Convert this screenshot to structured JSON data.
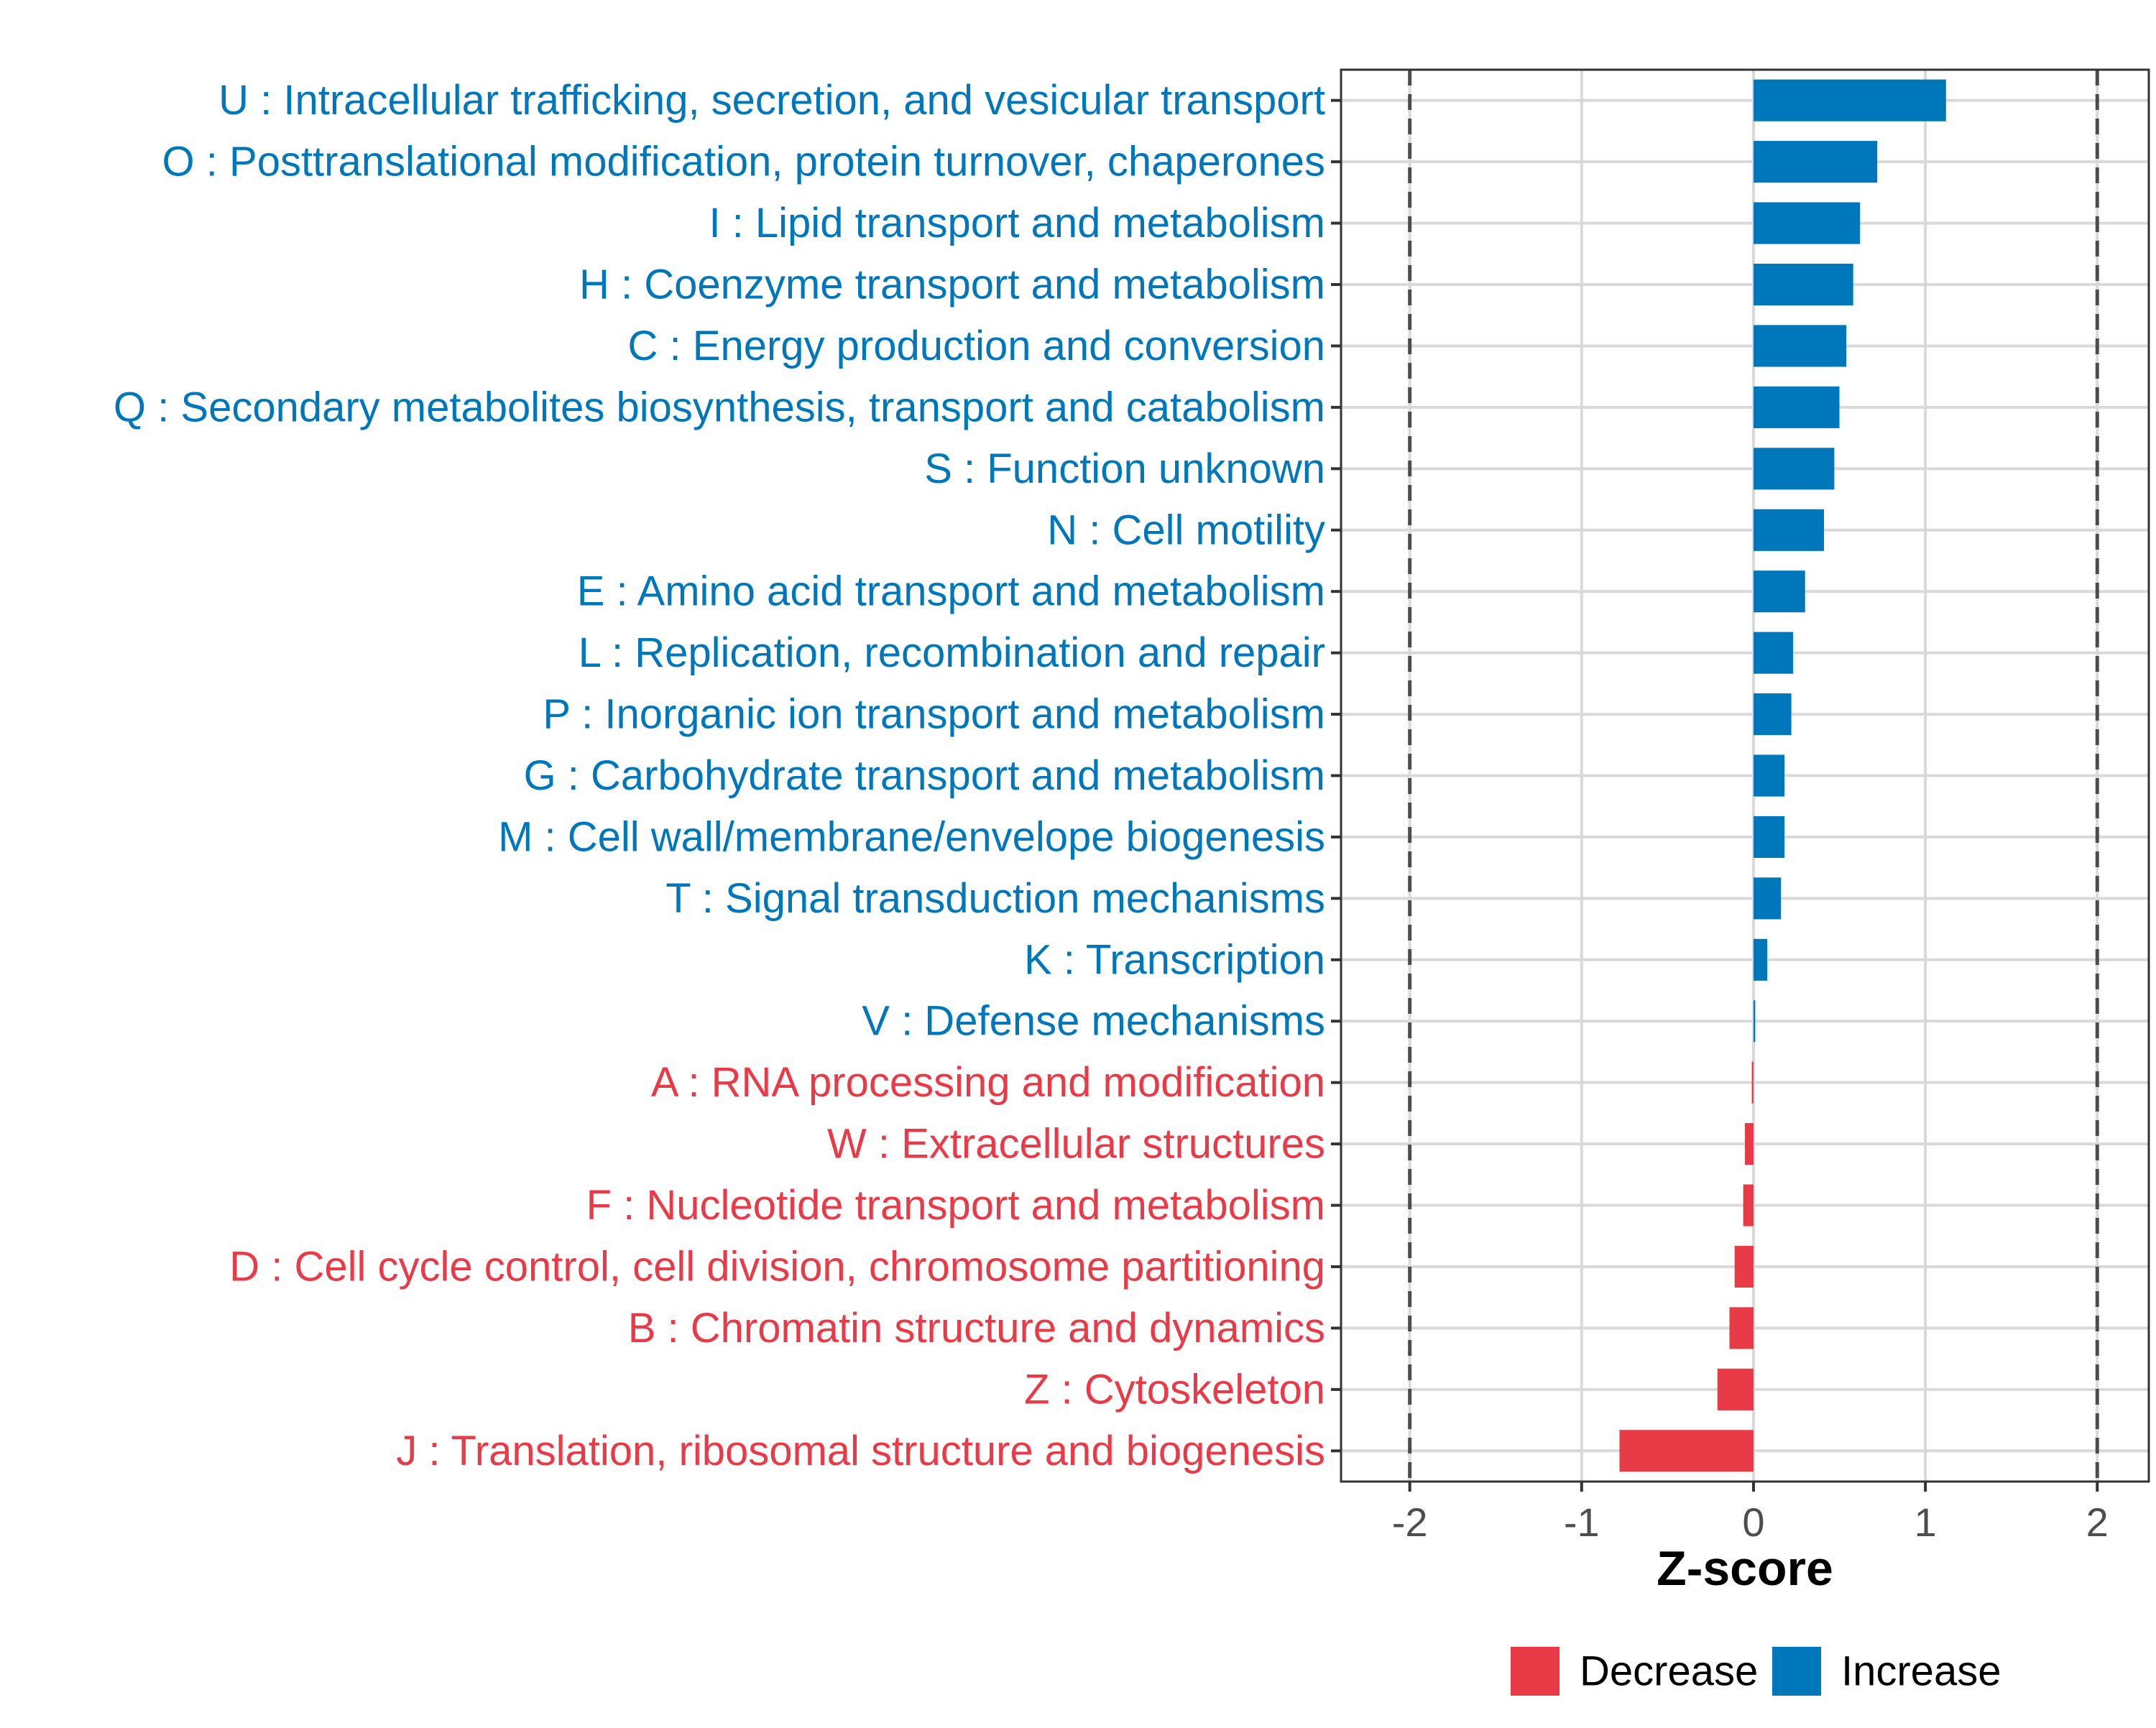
{
  "colors": {
    "increase": "#0076BB",
    "decrease": "#E83A47",
    "grid": "#D9D9D9",
    "axis_text": "#4D4D4D",
    "border": "#333333",
    "threshold": "#4D4D4D"
  },
  "chart_data": {
    "type": "bar",
    "orientation": "horizontal",
    "xlabel": "Z-score",
    "ylabel": "",
    "xlim": [
      -2.4,
      2.3
    ],
    "x_ticks": [
      -2,
      -1,
      0,
      1,
      2
    ],
    "x_tick_labels": [
      "-2",
      "-1",
      "0",
      "1",
      "2"
    ],
    "threshold_lines": [
      -2,
      2
    ],
    "grid": true,
    "legend_position": "bottom",
    "legend": [
      {
        "key": "decrease",
        "label": "Decrease"
      },
      {
        "key": "increase",
        "label": "Increase"
      }
    ],
    "categories": [
      "U : Intracellular trafficking, secretion, and vesicular transport",
      "O : Posttranslational modification, protein turnover, chaperones",
      "I : Lipid transport and metabolism",
      "H : Coenzyme transport and metabolism",
      "C : Energy production and conversion",
      "Q : Secondary metabolites biosynthesis, transport and catabolism",
      "S : Function unknown",
      "N : Cell motility",
      "E : Amino acid transport and metabolism",
      "L : Replication, recombination and repair",
      "P : Inorganic ion transport and metabolism",
      "G : Carbohydrate transport and metabolism",
      "M : Cell wall/membrane/envelope biogenesis",
      "T : Signal transduction mechanisms",
      "K : Transcription",
      "V : Defense mechanisms",
      "A : RNA processing and modification",
      "W : Extracellular structures",
      "F : Nucleotide transport and metabolism",
      "D : Cell cycle control, cell division, chromosome partitioning",
      "B : Chromatin structure and dynamics",
      "Z : Cytoskeleton",
      "J : Translation, ribosomal structure and biogenesis"
    ],
    "values": [
      1.12,
      0.72,
      0.62,
      0.58,
      0.54,
      0.5,
      0.47,
      0.41,
      0.3,
      0.23,
      0.22,
      0.18,
      0.18,
      0.16,
      0.08,
      0.01,
      -0.01,
      -0.05,
      -0.06,
      -0.11,
      -0.14,
      -0.21,
      -0.78
    ],
    "direction": [
      "increase",
      "increase",
      "increase",
      "increase",
      "increase",
      "increase",
      "increase",
      "increase",
      "increase",
      "increase",
      "increase",
      "increase",
      "increase",
      "increase",
      "increase",
      "increase",
      "decrease",
      "decrease",
      "decrease",
      "decrease",
      "decrease",
      "decrease",
      "decrease"
    ]
  }
}
